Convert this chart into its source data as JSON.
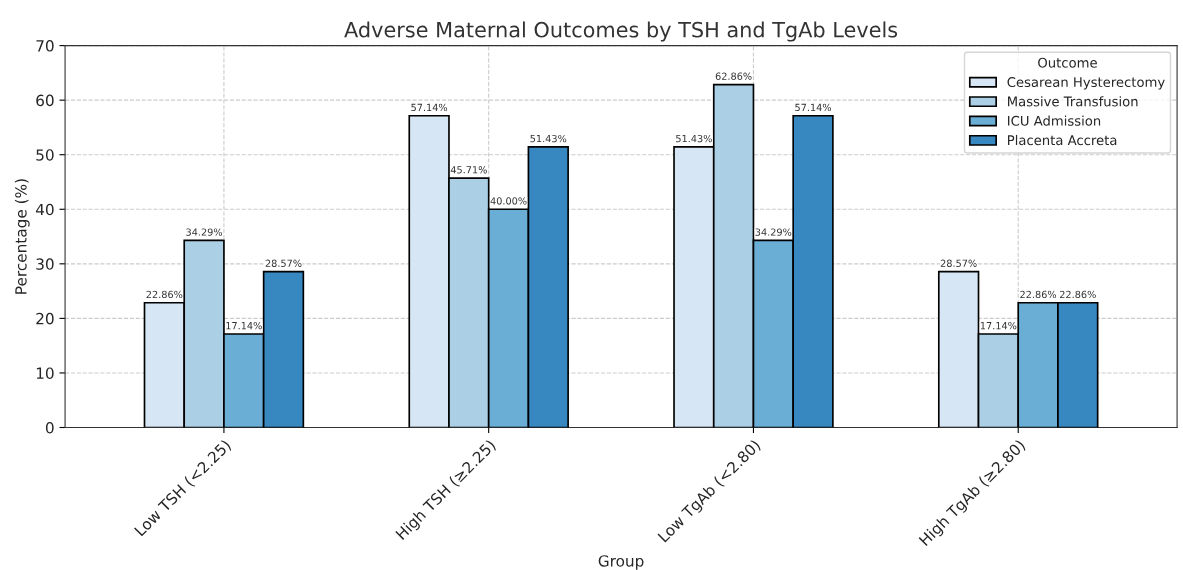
{
  "chart_data": {
    "type": "bar",
    "title": "Adverse Maternal Outcomes by TSH and TgAb Levels",
    "xlabel": "Group",
    "ylabel": "Percentage (%)",
    "legend_title": "Outcome",
    "categories": [
      "Low TSH (<2.25)",
      "High TSH (≥2.25)",
      "Low TgAb (<2.80)",
      "High TgAb (≥2.80)"
    ],
    "series": [
      {
        "name": "Cesarean Hysterectomy",
        "color": "#d6e6f4",
        "values": [
          22.86,
          57.14,
          51.43,
          28.57
        ],
        "value_labels": [
          "22.86%",
          "57.14%",
          "51.43%",
          "28.57%"
        ]
      },
      {
        "name": "Massive Transfusion",
        "color": "#abd0e6",
        "values": [
          34.29,
          45.71,
          62.86,
          17.14
        ],
        "value_labels": [
          "34.29%",
          "45.71%",
          "62.86%",
          "17.14%"
        ]
      },
      {
        "name": "ICU Admission",
        "color": "#6aaed6",
        "values": [
          17.14,
          40.0,
          34.29,
          22.86
        ],
        "value_labels": [
          "17.14%",
          "40.00%",
          "34.29%",
          "22.86%"
        ]
      },
      {
        "name": "Placenta Accreta",
        "color": "#3787c0",
        "values": [
          28.57,
          51.43,
          57.14,
          22.86
        ],
        "value_labels": [
          "28.57%",
          "51.43%",
          "57.14%",
          "22.86%"
        ]
      }
    ],
    "ylim": [
      0,
      70
    ],
    "yticks": [
      0,
      10,
      20,
      30,
      40,
      50,
      60,
      70
    ],
    "grid": true,
    "legend": "top right"
  }
}
